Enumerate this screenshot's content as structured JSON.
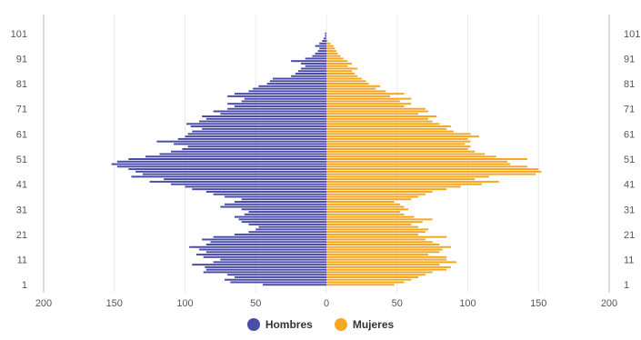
{
  "chart_data": {
    "type": "bar",
    "orientation": "horizontal-pyramid",
    "title": "",
    "xlabel": "",
    "ylabel": "",
    "xlim": [
      -200,
      200
    ],
    "x_ticks": [
      -200,
      -150,
      -100,
      -50,
      0,
      50,
      100,
      150,
      200
    ],
    "x_tick_labels": [
      "200",
      "150",
      "100",
      "50",
      "0",
      "50",
      "100",
      "150",
      "200"
    ],
    "y_tick_labels": [
      "1",
      "11",
      "21",
      "31",
      "41",
      "51",
      "61",
      "71",
      "81",
      "91",
      "101"
    ],
    "y_tick_values": [
      1,
      11,
      21,
      31,
      41,
      51,
      61,
      71,
      81,
      91,
      101
    ],
    "ylim": [
      0,
      102
    ],
    "grid": "vertical",
    "legend_position": "bottom-center",
    "ages": [
      1,
      2,
      3,
      4,
      5,
      6,
      7,
      8,
      9,
      10,
      11,
      12,
      13,
      14,
      15,
      16,
      17,
      18,
      19,
      20,
      21,
      22,
      23,
      24,
      25,
      26,
      27,
      28,
      29,
      30,
      31,
      32,
      33,
      34,
      35,
      36,
      37,
      38,
      39,
      40,
      41,
      42,
      43,
      44,
      45,
      46,
      47,
      48,
      49,
      50,
      51,
      52,
      53,
      54,
      55,
      56,
      57,
      58,
      59,
      60,
      61,
      62,
      63,
      64,
      65,
      66,
      67,
      68,
      69,
      70,
      71,
      72,
      73,
      74,
      75,
      76,
      77,
      78,
      79,
      80,
      81,
      82,
      83,
      84,
      85,
      86,
      87,
      88,
      89,
      90,
      91,
      92,
      93,
      94,
      95,
      96,
      97,
      98,
      99,
      100,
      101
    ],
    "series": [
      {
        "name": "Hombres",
        "color": "#4b4ca8",
        "values": [
          45,
          68,
          72,
          65,
          70,
          87,
          85,
          86,
          95,
          80,
          75,
          87,
          92,
          85,
          90,
          97,
          85,
          82,
          88,
          80,
          65,
          55,
          50,
          48,
          55,
          60,
          62,
          65,
          58,
          55,
          60,
          75,
          72,
          65,
          60,
          72,
          80,
          85,
          95,
          100,
          110,
          125,
          115,
          138,
          130,
          135,
          140,
          148,
          152,
          148,
          140,
          128,
          118,
          110,
          102,
          98,
          108,
          120,
          105,
          100,
          98,
          95,
          88,
          96,
          99,
          90,
          85,
          88,
          75,
          80,
          70,
          65,
          70,
          60,
          58,
          70,
          65,
          55,
          52,
          48,
          42,
          40,
          38,
          25,
          22,
          20,
          18,
          15,
          18,
          25,
          15,
          10,
          8,
          6,
          5,
          8,
          5,
          3,
          2,
          1,
          1
        ]
      },
      {
        "name": "Mujeres",
        "color": "#f5a623",
        "values": [
          48,
          55,
          60,
          65,
          70,
          75,
          85,
          88,
          80,
          92,
          85,
          85,
          72,
          80,
          82,
          88,
          80,
          75,
          70,
          85,
          65,
          70,
          72,
          65,
          60,
          68,
          75,
          62,
          55,
          52,
          58,
          55,
          52,
          48,
          60,
          65,
          70,
          75,
          85,
          95,
          110,
          122,
          105,
          115,
          148,
          152,
          150,
          142,
          130,
          128,
          142,
          120,
          112,
          105,
          100,
          102,
          98,
          102,
          100,
          108,
          102,
          90,
          85,
          88,
          80,
          75,
          72,
          78,
          65,
          72,
          70,
          55,
          60,
          52,
          60,
          45,
          55,
          42,
          35,
          38,
          30,
          28,
          25,
          22,
          20,
          18,
          22,
          15,
          18,
          15,
          12,
          10,
          8,
          7,
          6,
          5,
          3,
          1,
          0,
          0,
          0
        ]
      }
    ]
  },
  "legend": {
    "items": [
      {
        "label": "Hombres",
        "color": "#4b4ca8"
      },
      {
        "label": "Mujeres",
        "color": "#f5a623"
      }
    ]
  }
}
